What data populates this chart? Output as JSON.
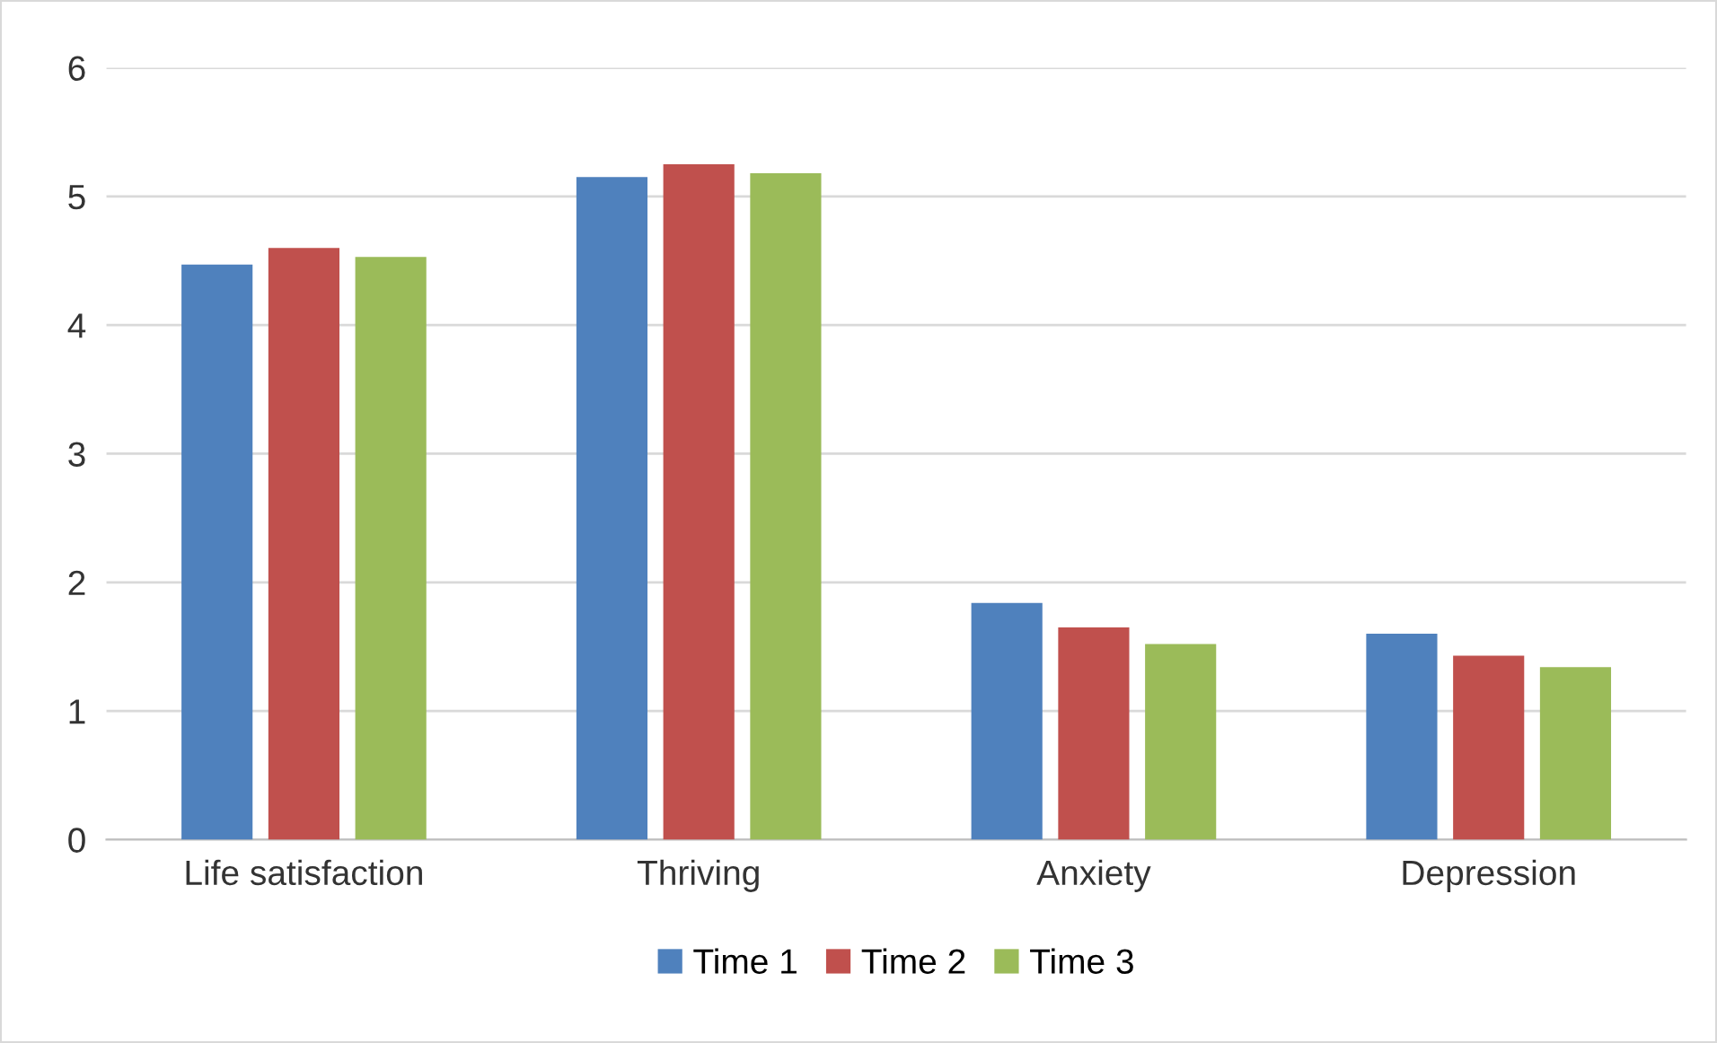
{
  "chart_data": {
    "type": "bar",
    "categories": [
      "Life satisfaction",
      "Thriving",
      "Anxiety",
      "Depression"
    ],
    "series": [
      {
        "name": "Time 1",
        "color": "#4f81bd",
        "values": [
          4.47,
          5.15,
          1.84,
          1.6
        ]
      },
      {
        "name": "Time 2",
        "color": "#c0504d",
        "values": [
          4.6,
          5.25,
          1.65,
          1.43
        ]
      },
      {
        "name": "Time 3",
        "color": "#9bbb59",
        "values": [
          4.53,
          5.18,
          1.52,
          1.34
        ]
      }
    ],
    "ylim": [
      0,
      6
    ],
    "yticks": [
      0,
      1,
      2,
      3,
      4,
      5,
      6
    ],
    "grid": "y",
    "legend": "bottom"
  }
}
